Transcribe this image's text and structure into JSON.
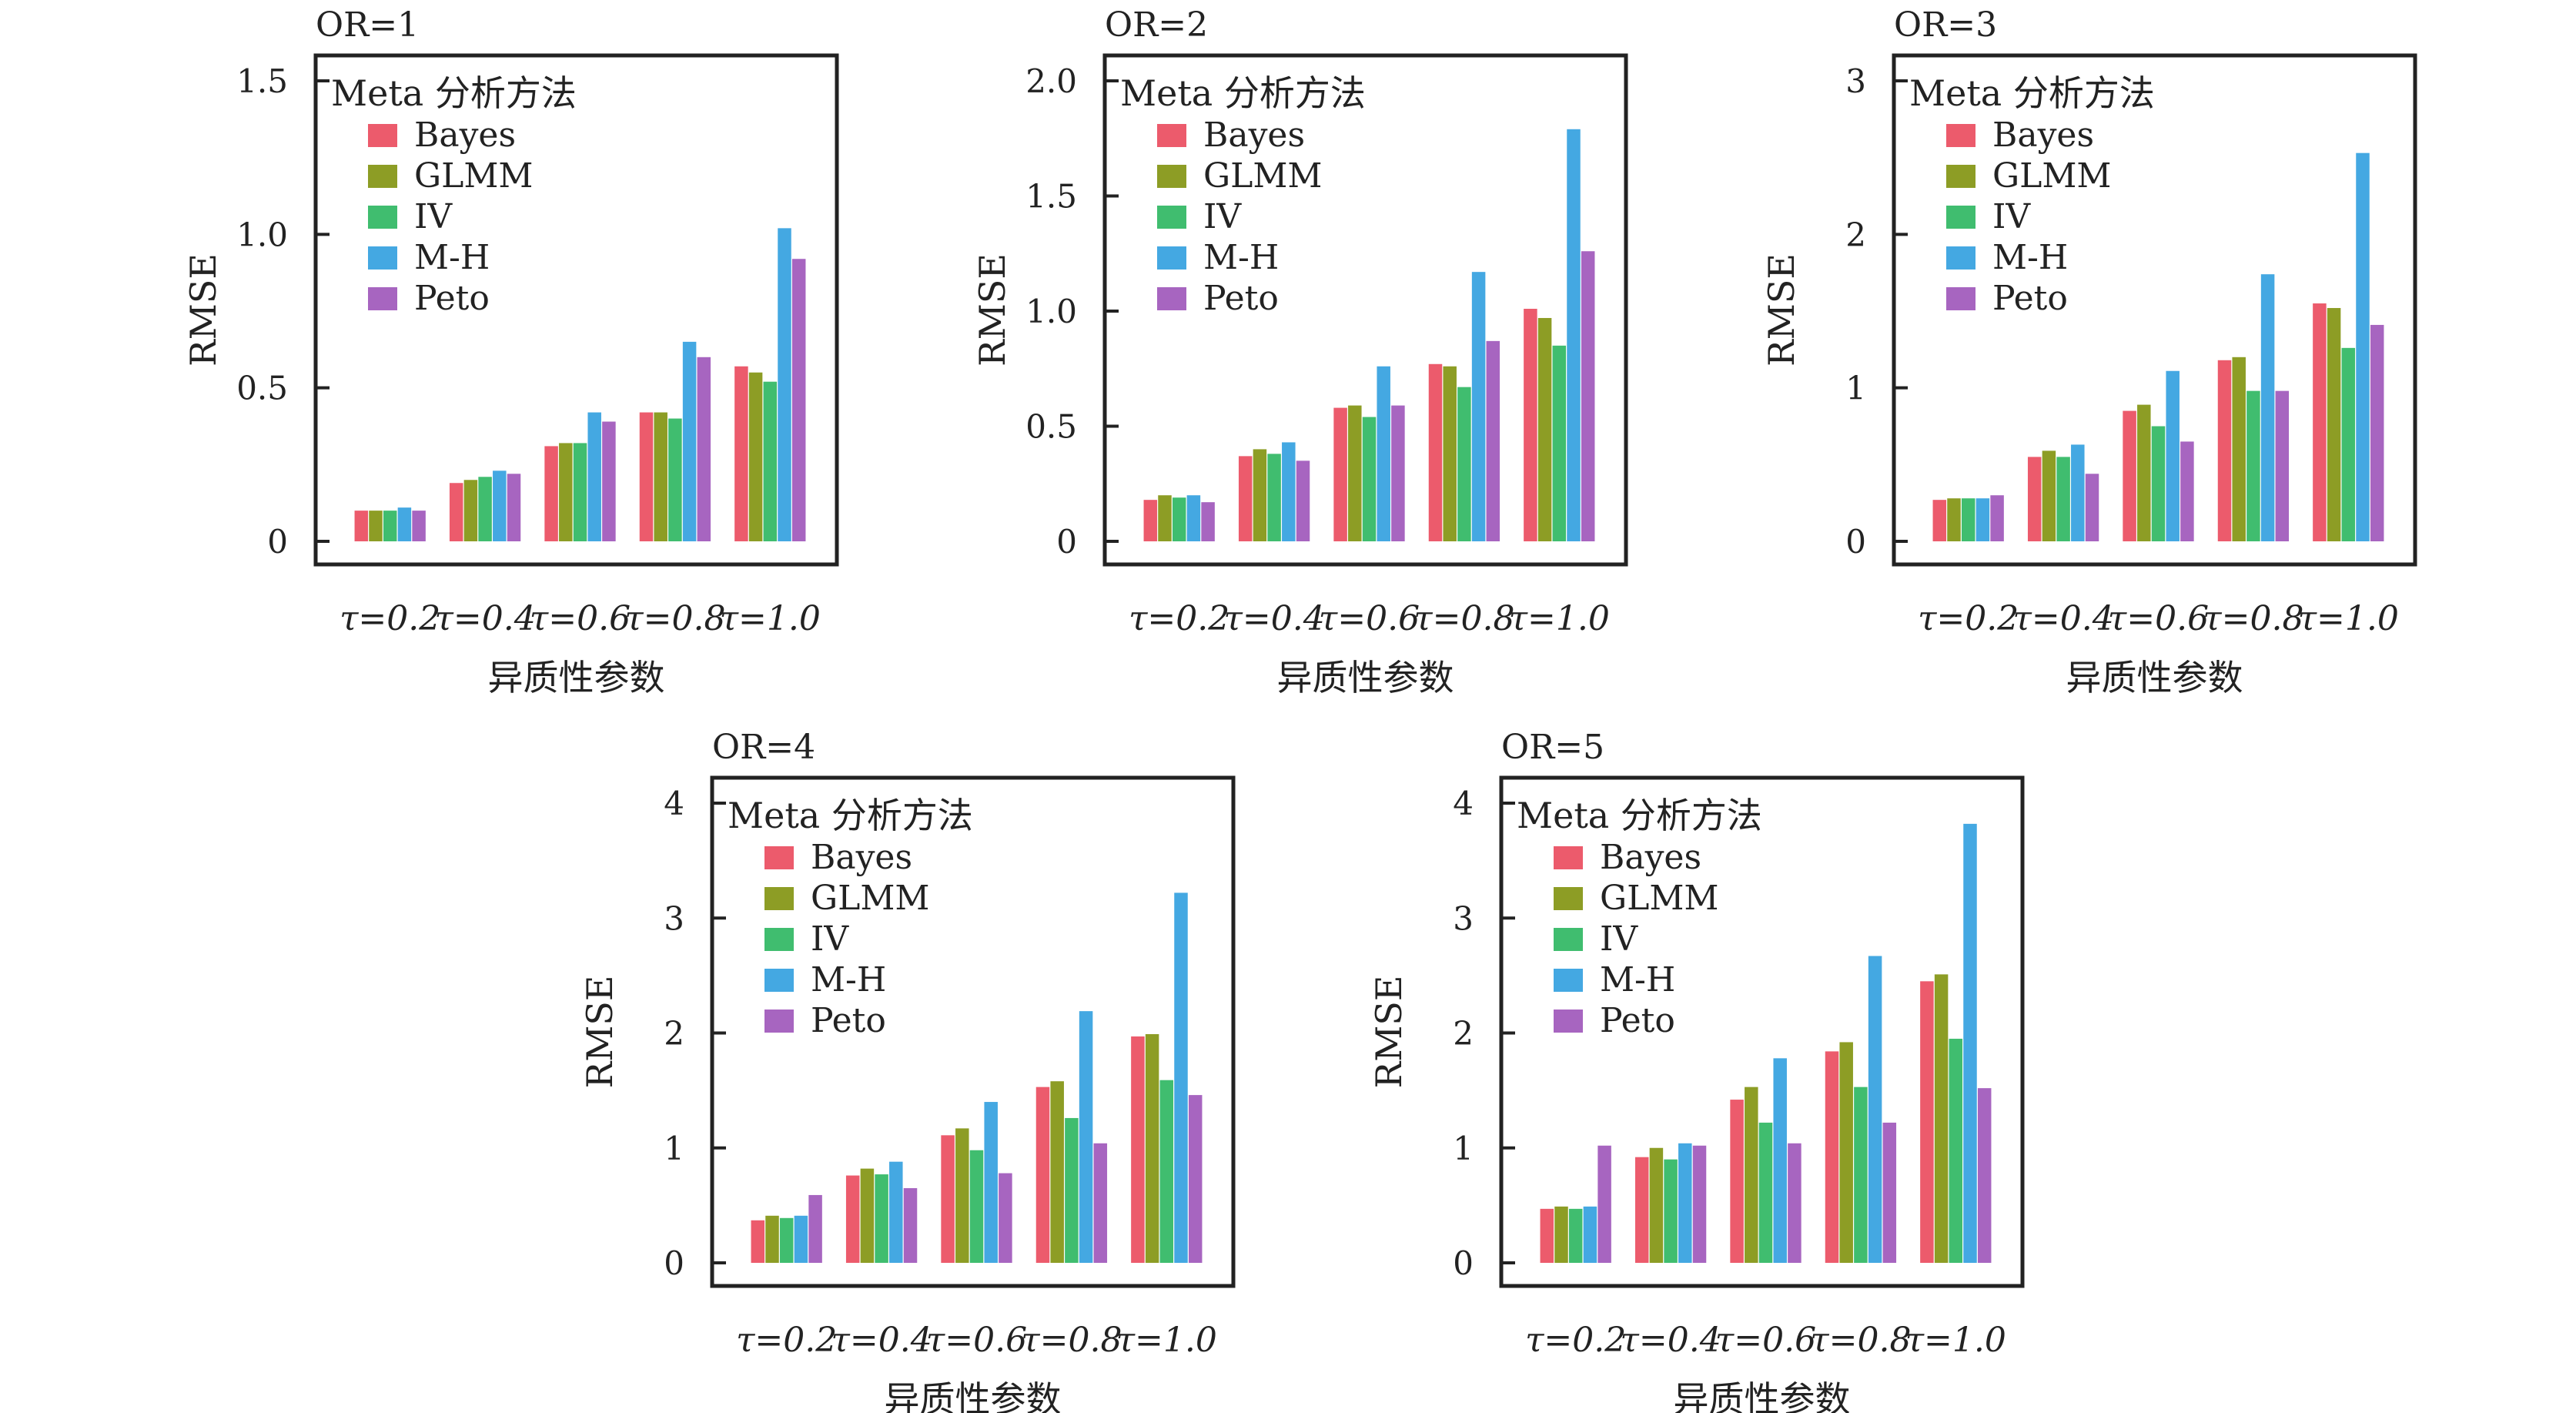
{
  "legend": {
    "title": "Meta 分析方法",
    "items": [
      {
        "name": "Bayes",
        "color": "#EC5B6C"
      },
      {
        "name": "GLMM",
        "color": "#8D9D25"
      },
      {
        "name": "IV",
        "color": "#40BD6F"
      },
      {
        "name": "M-H",
        "color": "#44A8E2"
      },
      {
        "name": "Peto",
        "color": "#A765C0"
      }
    ]
  },
  "chart_data": [
    {
      "type": "bar",
      "title": "OR=1",
      "xlabel": "异质性参数",
      "ylabel": "RMSE",
      "categories": [
        "τ=0.2",
        "τ=0.4",
        "τ=0.6",
        "τ=0.8",
        "τ=1.0"
      ],
      "ylim": [
        0,
        1.5
      ],
      "yticks": [
        "0",
        "0.5",
        "1.0",
        "1.5"
      ],
      "ytick_values": [
        0,
        0.5,
        1.0,
        1.5
      ],
      "legend_position": "top-left",
      "series": [
        {
          "name": "Bayes",
          "values": [
            0.1,
            0.19,
            0.31,
            0.42,
            0.57
          ]
        },
        {
          "name": "GLMM",
          "values": [
            0.1,
            0.2,
            0.32,
            0.42,
            0.55
          ]
        },
        {
          "name": "IV",
          "values": [
            0.1,
            0.21,
            0.32,
            0.4,
            0.52
          ]
        },
        {
          "name": "M-H",
          "values": [
            0.11,
            0.23,
            0.42,
            0.65,
            1.02
          ]
        },
        {
          "name": "Peto",
          "values": [
            0.1,
            0.22,
            0.39,
            0.6,
            0.92
          ]
        }
      ]
    },
    {
      "type": "bar",
      "title": "OR=2",
      "xlabel": "异质性参数",
      "ylabel": "RMSE",
      "categories": [
        "τ=0.2",
        "τ=0.4",
        "τ=0.6",
        "τ=0.8",
        "τ=1.0"
      ],
      "ylim": [
        0,
        2.0
      ],
      "yticks": [
        "0",
        "0.5",
        "1.0",
        "1.5",
        "2.0"
      ],
      "ytick_values": [
        0,
        0.5,
        1.0,
        1.5,
        2.0
      ],
      "legend_position": "top-left",
      "series": [
        {
          "name": "Bayes",
          "values": [
            0.18,
            0.37,
            0.58,
            0.77,
            1.01
          ]
        },
        {
          "name": "GLMM",
          "values": [
            0.2,
            0.4,
            0.59,
            0.76,
            0.97
          ]
        },
        {
          "name": "IV",
          "values": [
            0.19,
            0.38,
            0.54,
            0.67,
            0.85
          ]
        },
        {
          "name": "M-H",
          "values": [
            0.2,
            0.43,
            0.76,
            1.17,
            1.79
          ]
        },
        {
          "name": "Peto",
          "values": [
            0.17,
            0.35,
            0.59,
            0.87,
            1.26
          ]
        }
      ]
    },
    {
      "type": "bar",
      "title": "OR=3",
      "xlabel": "异质性参数",
      "ylabel": "RMSE",
      "categories": [
        "τ=0.2",
        "τ=0.4",
        "τ=0.6",
        "τ=0.8",
        "τ=1.0"
      ],
      "ylim": [
        0,
        3
      ],
      "yticks": [
        "0",
        "1",
        "2",
        "3"
      ],
      "ytick_values": [
        0,
        1,
        2,
        3
      ],
      "legend_position": "top-left",
      "series": [
        {
          "name": "Bayes",
          "values": [
            0.27,
            0.55,
            0.85,
            1.18,
            1.55
          ]
        },
        {
          "name": "GLMM",
          "values": [
            0.28,
            0.59,
            0.89,
            1.2,
            1.52
          ]
        },
        {
          "name": "IV",
          "values": [
            0.28,
            0.55,
            0.75,
            0.98,
            1.26
          ]
        },
        {
          "name": "M-H",
          "values": [
            0.28,
            0.63,
            1.11,
            1.74,
            2.53
          ]
        },
        {
          "name": "Peto",
          "values": [
            0.3,
            0.44,
            0.65,
            0.98,
            1.41
          ]
        }
      ]
    },
    {
      "type": "bar",
      "title": "OR=4",
      "xlabel": "异质性参数",
      "ylabel": "RMSE",
      "categories": [
        "τ=0.2",
        "τ=0.4",
        "τ=0.6",
        "τ=0.8",
        "τ=1.0"
      ],
      "ylim": [
        0,
        4
      ],
      "yticks": [
        "0",
        "1",
        "2",
        "3",
        "4"
      ],
      "ytick_values": [
        0,
        1,
        2,
        3,
        4
      ],
      "legend_position": "top-left",
      "series": [
        {
          "name": "Bayes",
          "values": [
            0.37,
            0.76,
            1.11,
            1.53,
            1.97
          ]
        },
        {
          "name": "GLMM",
          "values": [
            0.41,
            0.82,
            1.17,
            1.58,
            1.99
          ]
        },
        {
          "name": "IV",
          "values": [
            0.39,
            0.77,
            0.98,
            1.26,
            1.59
          ]
        },
        {
          "name": "M-H",
          "values": [
            0.41,
            0.88,
            1.4,
            2.19,
            3.22
          ]
        },
        {
          "name": "Peto",
          "values": [
            0.59,
            0.65,
            0.78,
            1.04,
            1.46
          ]
        }
      ]
    },
    {
      "type": "bar",
      "title": "OR=5",
      "xlabel": "异质性参数",
      "ylabel": "RMSE",
      "categories": [
        "τ=0.2",
        "τ=0.4",
        "τ=0.6",
        "τ=0.8",
        "τ=1.0"
      ],
      "ylim": [
        0,
        4
      ],
      "yticks": [
        "0",
        "1",
        "2",
        "3",
        "4"
      ],
      "ytick_values": [
        0,
        1,
        2,
        3,
        4
      ],
      "legend_position": "top-left",
      "series": [
        {
          "name": "Bayes",
          "values": [
            0.47,
            0.92,
            1.42,
            1.84,
            2.45
          ]
        },
        {
          "name": "GLMM",
          "values": [
            0.49,
            1.0,
            1.53,
            1.92,
            2.51
          ]
        },
        {
          "name": "IV",
          "values": [
            0.47,
            0.9,
            1.22,
            1.53,
            1.95
          ]
        },
        {
          "name": "M-H",
          "values": [
            0.49,
            1.04,
            1.78,
            2.67,
            3.82
          ]
        },
        {
          "name": "Peto",
          "values": [
            1.02,
            1.02,
            1.04,
            1.22,
            1.52
          ]
        }
      ]
    }
  ]
}
